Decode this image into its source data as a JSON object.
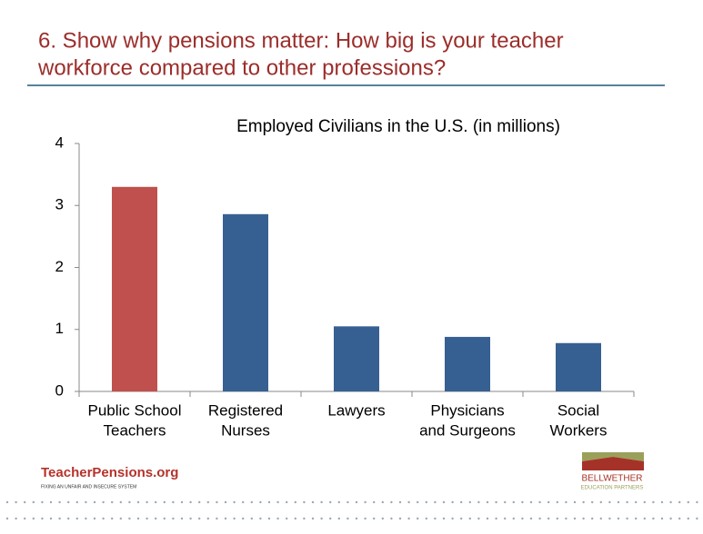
{
  "slide_title": [
    "6. Show why pensions matter: How big is your teacher",
    "workforce compared to other professions?"
  ],
  "chart_data": {
    "type": "bar",
    "title": "Employed Civilians in the U.S. (in millions)",
    "categories": [
      [
        "Public School",
        "Teachers"
      ],
      [
        "Registered",
        "Nurses"
      ],
      [
        "Lawyers"
      ],
      [
        "Physicians",
        "and Surgeons"
      ],
      [
        "Social",
        "Workers"
      ]
    ],
    "values": [
      3.3,
      2.86,
      1.05,
      0.88,
      0.78
    ],
    "colors": [
      "#c0504d",
      "#376092",
      "#376092",
      "#376092",
      "#376092"
    ],
    "ylim": [
      0,
      4
    ],
    "yticks": [
      0,
      1,
      2,
      3,
      4
    ],
    "grid": false
  },
  "footer": {
    "left_logo": "TeacherPensions.org",
    "left_tagline": "FIXING AN UNFAIR AND INSECURE SYSTEM",
    "right_logo": "BELLWETHER",
    "right_tagline": "EDUCATION PARTNERS"
  }
}
